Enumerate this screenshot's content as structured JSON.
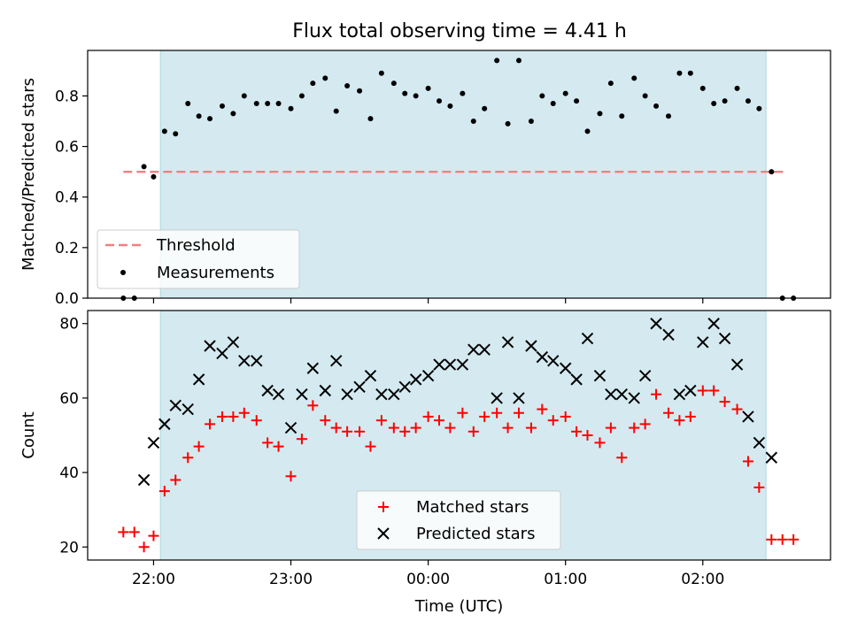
{
  "title": "Flux total observing time = 4.41 h",
  "chart_data": [
    {
      "type": "scatter",
      "panel": "top",
      "ylabel": "Matched/Predicted stars",
      "ylim": [
        0,
        0.98
      ],
      "yticks": [
        0.0,
        0.2,
        0.4,
        0.6,
        0.8
      ],
      "ytick_labels": [
        "0.0",
        "0.2",
        "0.4",
        "0.6",
        "0.8"
      ],
      "xlim": [
        21.52,
        26.93
      ],
      "shade_x": [
        22.05,
        26.46
      ],
      "shade_color": "#d4eaf0",
      "threshold": {
        "name": "Threshold",
        "value": 0.5,
        "x": [
          21.78,
          26.6
        ],
        "color": "#f08080"
      },
      "series": [
        {
          "name": "Measurements",
          "color": "#000000",
          "x": [
            21.78,
            21.86,
            21.93,
            22.0,
            22.08,
            22.16,
            22.25,
            22.33,
            22.41,
            22.5,
            22.58,
            22.66,
            22.75,
            22.83,
            22.91,
            23.0,
            23.08,
            23.16,
            23.25,
            23.33,
            23.41,
            23.5,
            23.58,
            23.66,
            23.75,
            23.83,
            23.91,
            24.0,
            24.08,
            24.16,
            24.25,
            24.33,
            24.41,
            24.5,
            24.58,
            24.66,
            24.75,
            24.83,
            24.91,
            25.0,
            25.08,
            25.16,
            25.25,
            25.33,
            25.41,
            25.5,
            25.58,
            25.66,
            25.75,
            25.83,
            25.91,
            26.0,
            26.08,
            26.16,
            26.25,
            26.33,
            26.41,
            26.5,
            26.58,
            26.66
          ],
          "y": [
            0.0,
            0.0,
            0.52,
            0.48,
            0.66,
            0.65,
            0.77,
            0.72,
            0.71,
            0.76,
            0.73,
            0.8,
            0.77,
            0.77,
            0.77,
            0.75,
            0.8,
            0.85,
            0.87,
            0.74,
            0.84,
            0.82,
            0.71,
            0.89,
            0.85,
            0.81,
            0.8,
            0.83,
            0.78,
            0.76,
            0.81,
            0.7,
            0.75,
            0.94,
            0.69,
            0.94,
            0.7,
            0.8,
            0.77,
            0.81,
            0.78,
            0.66,
            0.73,
            0.85,
            0.72,
            0.87,
            0.8,
            0.76,
            0.72,
            0.89,
            0.89,
            0.83,
            0.77,
            0.78,
            0.83,
            0.78,
            0.75,
            0.5,
            0.0,
            0.0
          ]
        }
      ]
    },
    {
      "type": "scatter",
      "panel": "bottom",
      "xlabel": "Time (UTC)",
      "ylabel": "Count",
      "ylim": [
        16.5,
        83.5
      ],
      "yticks": [
        20,
        40,
        60,
        80
      ],
      "ytick_labels": [
        "20",
        "40",
        "60",
        "80"
      ],
      "xlim": [
        21.52,
        26.93
      ],
      "xticks": [
        22,
        23,
        24,
        25,
        26
      ],
      "xtick_labels": [
        "22:00",
        "23:00",
        "00:00",
        "01:00",
        "02:00"
      ],
      "shade_x": [
        22.05,
        26.46
      ],
      "series": [
        {
          "name": "Matched stars",
          "marker": "+",
          "color": "#ff0000",
          "x": [
            21.78,
            21.86,
            21.93,
            22.0,
            22.08,
            22.16,
            22.25,
            22.33,
            22.41,
            22.5,
            22.58,
            22.66,
            22.75,
            22.83,
            22.91,
            23.0,
            23.08,
            23.16,
            23.25,
            23.33,
            23.41,
            23.5,
            23.58,
            23.66,
            23.75,
            23.83,
            23.91,
            24.0,
            24.08,
            24.16,
            24.25,
            24.33,
            24.41,
            24.5,
            24.58,
            24.66,
            24.75,
            24.83,
            24.91,
            25.0,
            25.08,
            25.16,
            25.25,
            25.33,
            25.41,
            25.5,
            25.58,
            25.66,
            25.75,
            25.83,
            25.91,
            26.0,
            26.08,
            26.16,
            26.25,
            26.33,
            26.41,
            26.5,
            26.58,
            26.66
          ],
          "y": [
            24,
            24,
            20,
            23,
            35,
            38,
            44,
            47,
            53,
            55,
            55,
            56,
            54,
            48,
            47,
            39,
            49,
            58,
            54,
            52,
            51,
            51,
            47,
            54,
            52,
            51,
            52,
            55,
            54,
            52,
            56,
            51,
            55,
            56,
            52,
            56,
            52,
            57,
            54,
            55,
            51,
            50,
            48,
            52,
            44,
            52,
            53,
            61,
            56,
            54,
            55,
            62,
            62,
            59,
            57,
            43,
            36,
            22,
            22,
            22
          ],
          "note": ""
        },
        {
          "name": "Predicted stars",
          "marker": "x",
          "color": "#000000",
          "x": [
            21.93,
            22.0,
            22.08,
            22.16,
            22.25,
            22.33,
            22.41,
            22.5,
            22.58,
            22.66,
            22.75,
            22.83,
            22.91,
            23.0,
            23.08,
            23.16,
            23.25,
            23.33,
            23.41,
            23.5,
            23.58,
            23.66,
            23.75,
            23.83,
            23.91,
            24.0,
            24.08,
            24.16,
            24.25,
            24.33,
            24.41,
            24.5,
            24.58,
            24.66,
            24.75,
            24.83,
            24.91,
            25.0,
            25.08,
            25.16,
            25.25,
            25.33,
            25.41,
            25.5,
            25.58,
            25.66,
            25.75,
            25.83,
            25.91,
            26.0,
            26.08,
            26.16,
            26.25,
            26.33,
            26.41,
            26.5
          ],
          "y": [
            38,
            48,
            53,
            58,
            57,
            65,
            74,
            72,
            75,
            70,
            70,
            62,
            61,
            52,
            61,
            68,
            62,
            70,
            61,
            63,
            66,
            61,
            61,
            63,
            65,
            66,
            69,
            69,
            69,
            73,
            73,
            60,
            75,
            60,
            74,
            71,
            70,
            68,
            65,
            76,
            66,
            61,
            61,
            60,
            66,
            80,
            77,
            61,
            62,
            75,
            80,
            76,
            69,
            55,
            48,
            44
          ]
        }
      ]
    }
  ]
}
